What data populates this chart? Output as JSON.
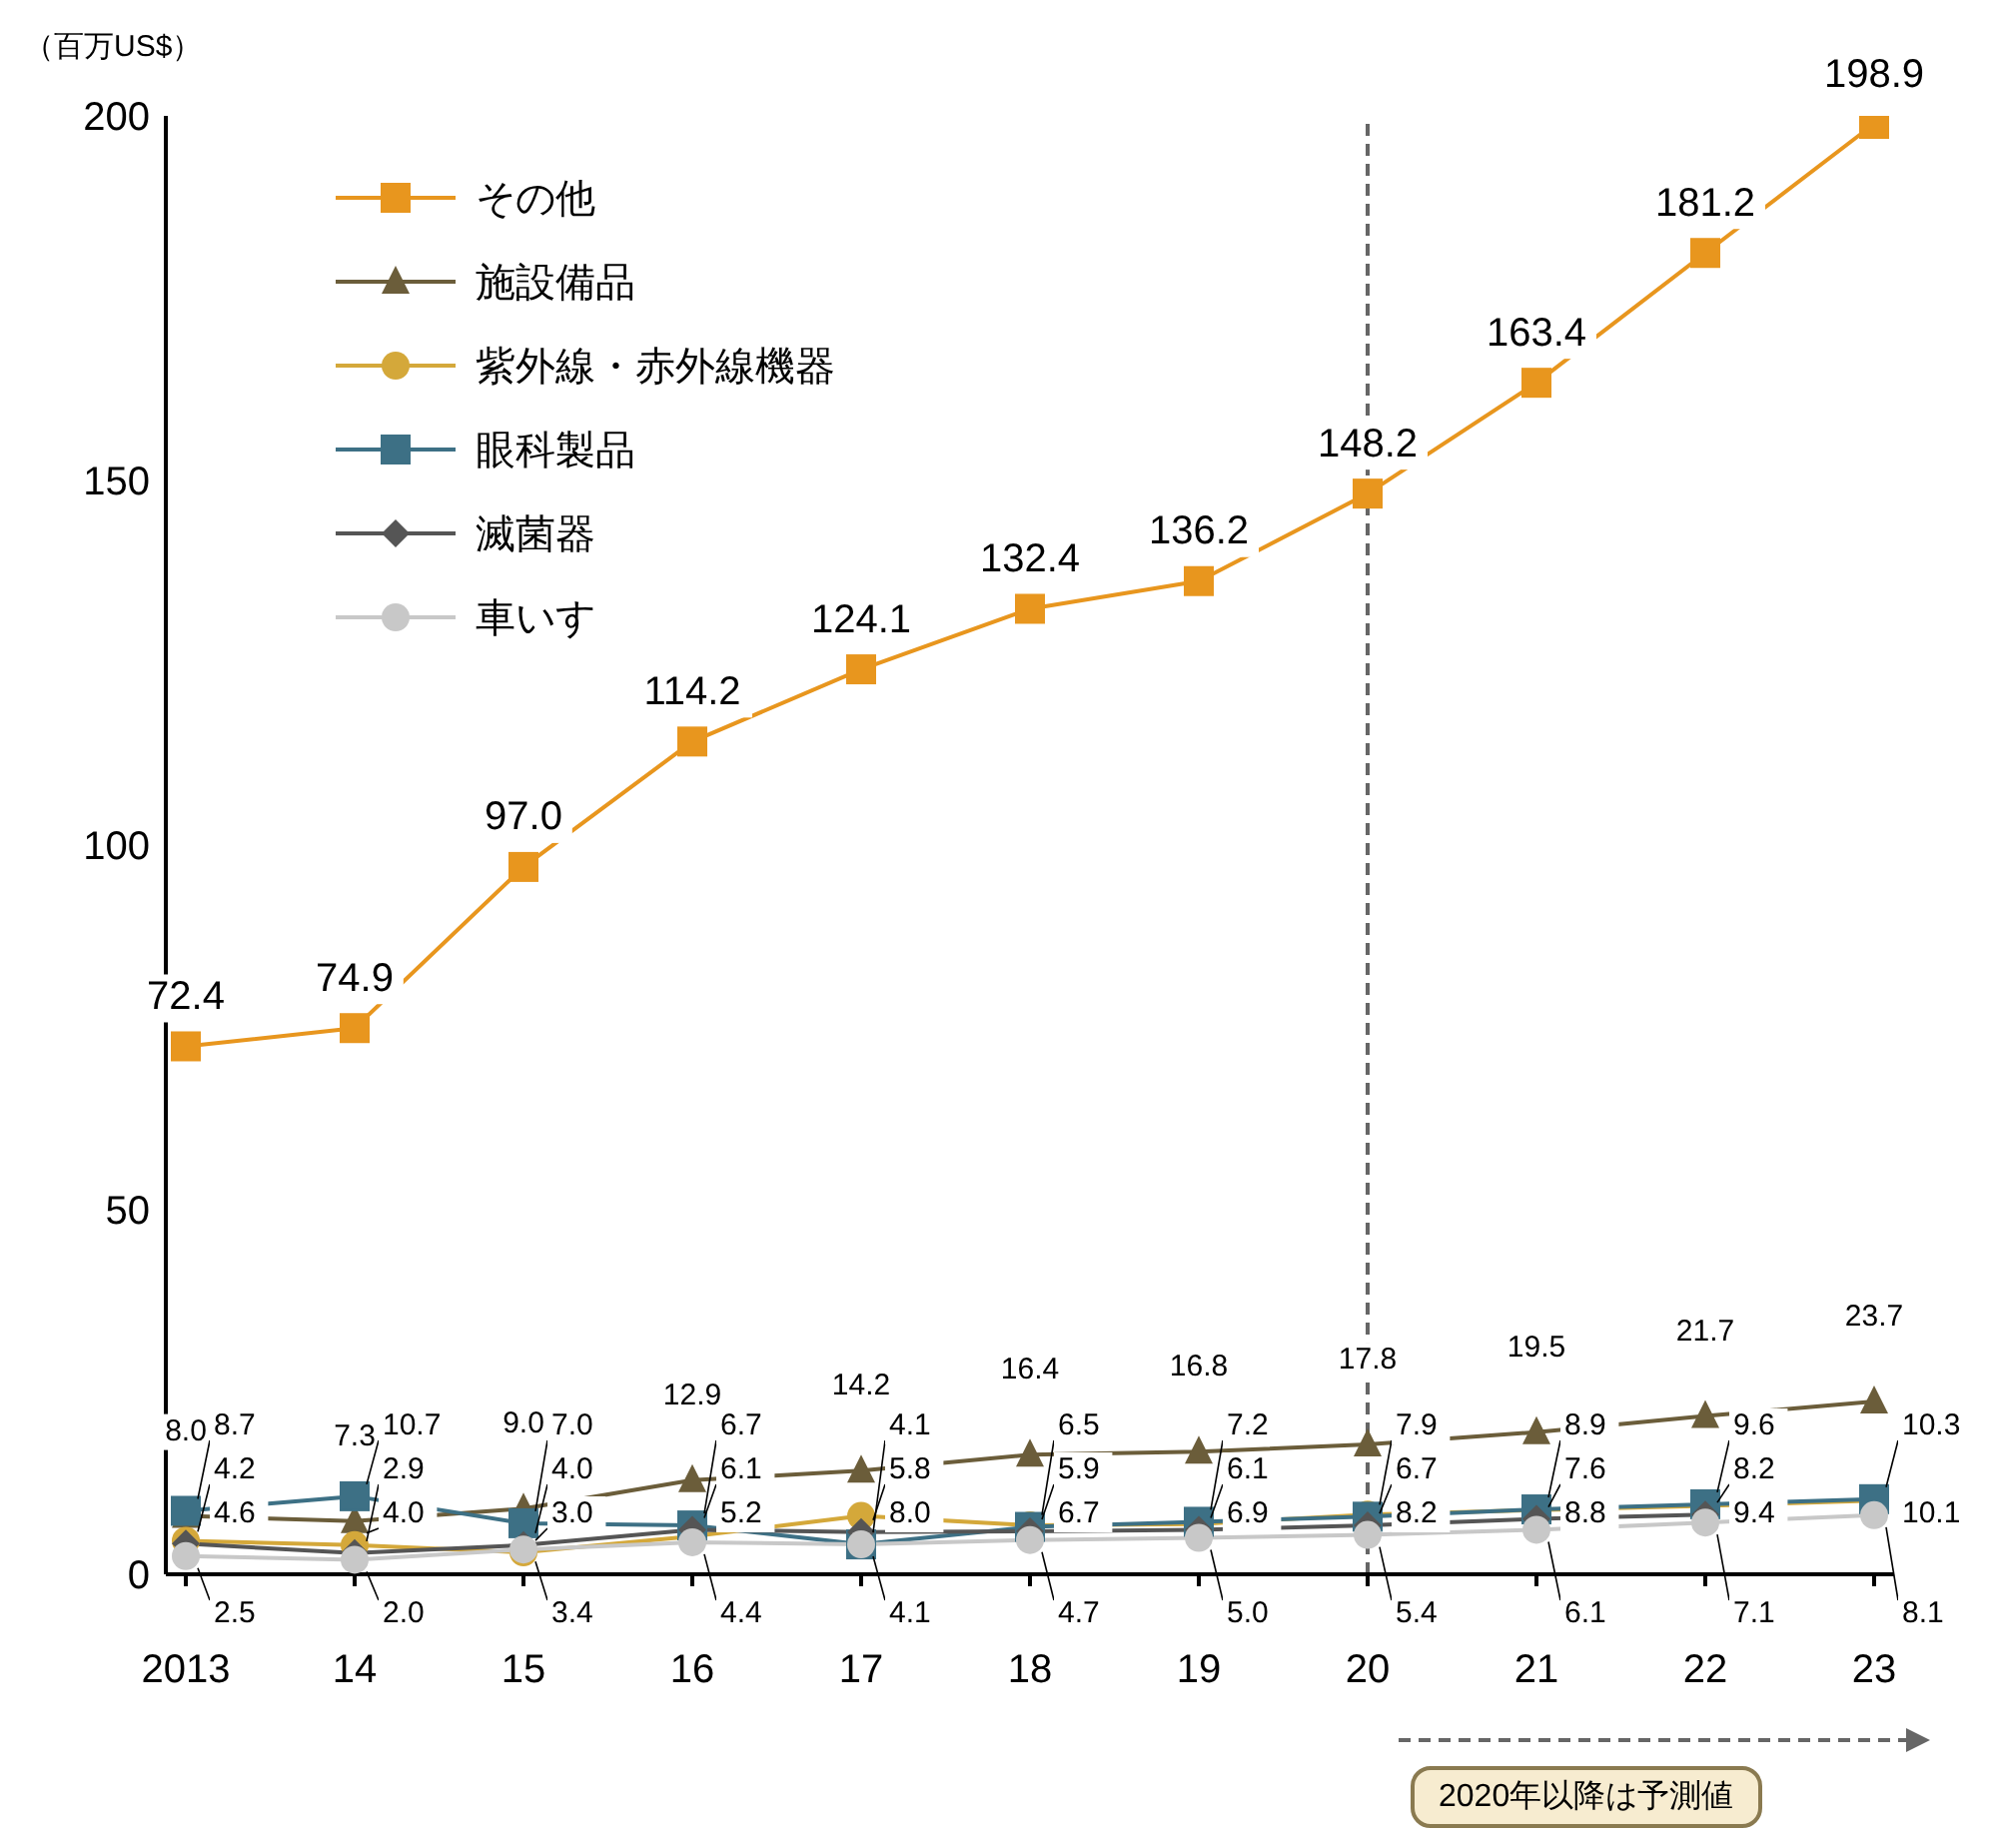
{
  "chart_data": {
    "type": "line",
    "categories": [
      "2013",
      "14",
      "15",
      "16",
      "17",
      "18",
      "19",
      "20",
      "21",
      "22",
      "23"
    ],
    "ylim": [
      0,
      200
    ],
    "yticks": [
      0,
      50,
      100,
      150,
      200
    ],
    "grid": false,
    "legend": "top left",
    "data_labels": true,
    "series": [
      {
        "name": "その他",
        "color": "#e8961e",
        "marker": "square",
        "values": [
          72.4,
          74.9,
          97.0,
          114.2,
          124.1,
          132.4,
          136.2,
          148.2,
          163.4,
          181.2,
          198.9
        ],
        "value_labels": [
          "72.4",
          "74.9",
          "97.0",
          "114.2",
          "124.1",
          "132.4",
          "136.2",
          "148.2",
          "163.4",
          "181.2",
          "198.9"
        ]
      },
      {
        "name": "施設備品",
        "color": "#6b5d3a",
        "marker": "triangle",
        "values": [
          8.0,
          7.3,
          9.0,
          12.9,
          14.2,
          16.4,
          16.8,
          17.8,
          19.5,
          21.7,
          23.7
        ],
        "value_labels": [
          "8.0",
          "7.3",
          "9.0",
          "12.9",
          "14.2",
          "16.4",
          "16.8",
          "17.8",
          "19.5",
          "21.7",
          "23.7"
        ]
      },
      {
        "name": "紫外線・赤外線機器",
        "color": "#d4a83a",
        "marker": "circle",
        "values": [
          4.6,
          4.0,
          3.0,
          5.2,
          8.0,
          6.7,
          6.9,
          8.2,
          8.8,
          9.4,
          10.1
        ],
        "value_labels": [
          "4.6",
          "4.0",
          "3.0",
          "5.2",
          "8.0",
          "6.7",
          "6.9",
          "8.2",
          "8.8",
          "9.4",
          "10.1"
        ]
      },
      {
        "name": "眼科製品",
        "color": "#3d7085",
        "marker": "square",
        "values": [
          8.7,
          10.7,
          7.0,
          6.7,
          4.1,
          6.5,
          7.2,
          7.9,
          8.9,
          9.6,
          10.3
        ],
        "value_labels": [
          "8.7",
          "10.7",
          "7.0",
          "6.7",
          "4.1",
          "6.5",
          "7.2",
          "7.9",
          "8.9",
          "9.6",
          "10.3"
        ]
      },
      {
        "name": "滅菌器",
        "color": "#555555",
        "marker": "diamond",
        "values": [
          4.2,
          2.9,
          4.0,
          6.1,
          5.8,
          5.9,
          6.1,
          6.7,
          7.6,
          8.2,
          null
        ],
        "value_labels": [
          "4.2",
          "2.9",
          "4.0",
          "6.1",
          "5.8",
          "5.9",
          "6.1",
          "6.7",
          "7.6",
          "8.2",
          null
        ]
      },
      {
        "name": "車いす",
        "color": "#c8c8c8",
        "marker": "circle",
        "values": [
          2.5,
          2.0,
          3.4,
          4.4,
          4.1,
          4.7,
          5.0,
          5.4,
          6.1,
          7.1,
          8.1
        ],
        "value_labels": [
          "2.5",
          "2.0",
          "3.4",
          "4.4",
          "4.1",
          "4.7",
          "5.0",
          "5.4",
          "6.1",
          "7.1",
          "8.1"
        ]
      }
    ],
    "ref_lines": [
      {
        "axis": "x",
        "value": "20",
        "color": "#666666",
        "line_style": "dashed"
      }
    ],
    "annotations": [
      "（百万US$）",
      "2020年以降は予測値"
    ]
  }
}
